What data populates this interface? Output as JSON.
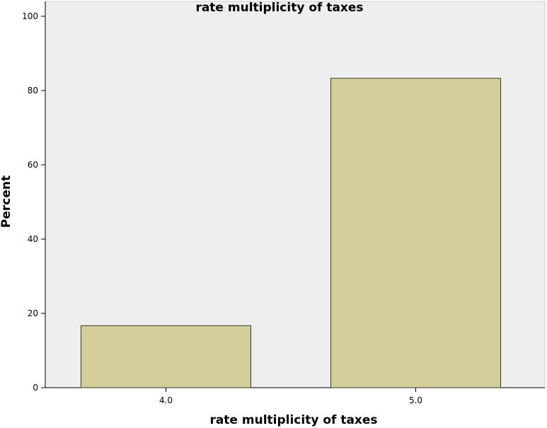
{
  "chart_data": {
    "type": "bar",
    "title": "rate multiplicity of taxes",
    "xlabel": "rate multiplicity of taxes",
    "ylabel": "Percent",
    "categories": [
      "4.0",
      "5.0"
    ],
    "values": [
      16.7,
      83.3
    ],
    "ylim": [
      0,
      100
    ],
    "yticks": [
      "0",
      "20",
      "40",
      "60",
      "80",
      "100"
    ],
    "grid": false,
    "legend": "none",
    "colors": {
      "plot_background": "#eeeeee",
      "bar_fill": "#d4cf9a",
      "bar_stroke": "#3a3a2a",
      "axis": "#000000"
    }
  }
}
